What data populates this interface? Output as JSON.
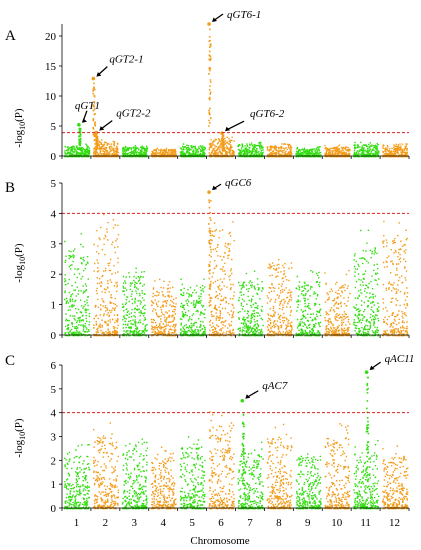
{
  "chart_data": [
    {
      "type": "scatter",
      "panel_label": "A",
      "ylabel": "-log10(P)",
      "ylim": [
        0,
        22
      ],
      "yticks": [
        0,
        5,
        10,
        15,
        20
      ],
      "threshold": 3.9,
      "chromosomes": [
        "1",
        "2",
        "3",
        "4",
        "5",
        "6",
        "7",
        "8",
        "9",
        "10",
        "11",
        "12"
      ],
      "baseline_levels": [
        1.8,
        2.4,
        1.6,
        1.2,
        1.8,
        3.0,
        2.0,
        1.8,
        1.4,
        1.6,
        2.0,
        1.8
      ],
      "peaks": [
        {
          "label": "qGT1",
          "chromosome": 1,
          "position": 0.55,
          "value": 5.2
        },
        {
          "label": "qGT2-1",
          "chromosome": 2,
          "position": 0.05,
          "value": 12.9
        },
        {
          "label": "qGT2-2",
          "chromosome": 2,
          "position": 0.15,
          "value": 3.9
        },
        {
          "label": "qGT6-1",
          "chromosome": 6,
          "position": 0.05,
          "value": 22.0
        },
        {
          "label": "qGT6-2",
          "chromosome": 6,
          "position": 0.5,
          "value": 3.8
        }
      ]
    },
    {
      "type": "scatter",
      "panel_label": "B",
      "ylabel": "-log10(P)",
      "ylim": [
        0,
        5
      ],
      "yticks": [
        0,
        1,
        2,
        3,
        4,
        5
      ],
      "threshold": 4.0,
      "chromosomes": [
        "1",
        "2",
        "3",
        "4",
        "5",
        "6",
        "7",
        "8",
        "9",
        "10",
        "11",
        "12"
      ],
      "baseline_levels": [
        2.8,
        3.4,
        2.0,
        1.6,
        1.6,
        3.6,
        1.8,
        2.4,
        1.8,
        1.8,
        2.9,
        3.2
      ],
      "peaks": [
        {
          "label": "qGC6",
          "chromosome": 6,
          "position": 0.05,
          "value": 4.7
        }
      ]
    },
    {
      "type": "scatter",
      "panel_label": "C",
      "ylabel": "-log10(P)",
      "ylim": [
        0,
        6
      ],
      "yticks": [
        0,
        1,
        2,
        3,
        4,
        5,
        6
      ],
      "threshold": 4.0,
      "chromosomes": [
        "1",
        "2",
        "3",
        "4",
        "5",
        "6",
        "7",
        "8",
        "9",
        "10",
        "11",
        "12"
      ],
      "baseline_levels": [
        2.3,
        3.0,
        2.6,
        2.2,
        2.6,
        3.5,
        2.4,
        3.0,
        2.2,
        3.0,
        2.4,
        2.2
      ],
      "peaks": [
        {
          "label": "qAC7",
          "chromosome": 7,
          "position": 0.2,
          "value": 4.5
        },
        {
          "label": "qAC11",
          "chromosome": 11,
          "position": 0.5,
          "value": 5.7
        }
      ]
    }
  ],
  "xlabel": "Chromosome",
  "colors": {
    "odd_chromosome": "#33dd11",
    "even_chromosome": "#f39c1a",
    "threshold_line": "#dd2222",
    "axis": "#000000"
  }
}
